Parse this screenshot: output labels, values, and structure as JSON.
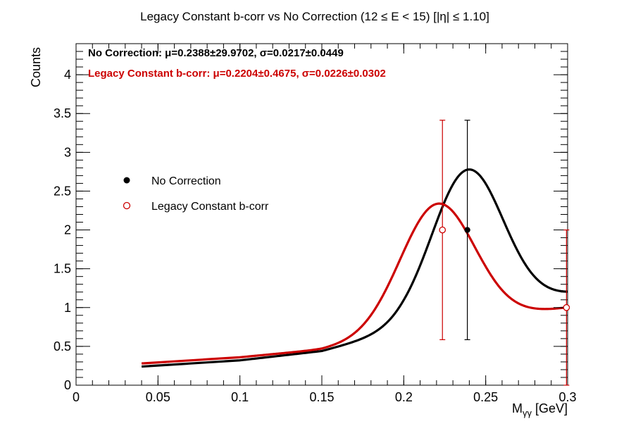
{
  "chart_data": {
    "type": "scatter",
    "title": "Legacy Constant b-corr vs No Correction   (12     ≤ E < 15)   [|η| ≤ 1.10]",
    "xlabel_main": "M",
    "xlabel_sub": "γγ",
    "xlabel_unit": " [GeV]",
    "ylabel": "Counts",
    "xlim": [
      0,
      0.3
    ],
    "ylim": [
      0,
      4.4
    ],
    "x_ticks": [
      0,
      0.05,
      0.1,
      0.15,
      0.2,
      0.25,
      0.3
    ],
    "x_tick_labels": [
      "0",
      "0.05",
      "0.1",
      "0.15",
      "0.2",
      "0.25",
      "0.3"
    ],
    "y_ticks": [
      0,
      0.5,
      1,
      1.5,
      2,
      2.5,
      3,
      3.5,
      4
    ],
    "y_tick_labels": [
      "0",
      "0.5",
      "1",
      "1.5",
      "2",
      "2.5",
      "3",
      "3.5",
      "4"
    ],
    "grid": false,
    "legend_position": "middle-left",
    "stats": [
      {
        "text": "No Correction: μ=0.2388±29.9702, σ=0.0217±0.0449",
        "color": "#000000"
      },
      {
        "text": "Legacy Constant b-corr: μ=0.2204±0.4675, σ=0.0226±0.0302",
        "color": "#cc0000"
      }
    ],
    "series": [
      {
        "name": "No Correction",
        "color": "#000000",
        "marker": "filled-circle",
        "points": [
          {
            "x": 0.2388,
            "y": 2,
            "yerr": 1.414
          }
        ],
        "fit": {
          "amplitude": 1.87,
          "mean": 0.2388,
          "sigma": 0.0217,
          "bkg": [
            [
              0.04,
              0.24
            ],
            [
              0.1,
              0.32
            ],
            [
              0.15,
              0.44
            ],
            [
              0.2,
              0.72
            ],
            [
              0.25,
              0.96
            ],
            [
              0.3,
              1.17
            ]
          ],
          "x_range": [
            0.04,
            0.3
          ]
        }
      },
      {
        "name": "Legacy Constant b-corr",
        "color": "#cc0000",
        "marker": "open-circle",
        "points": [
          {
            "x": 0.2236,
            "y": 2,
            "yerr": 1.414
          },
          {
            "x": 0.2993,
            "y": 1,
            "yerr": 1.0
          }
        ],
        "fit": {
          "amplitude": 1.6,
          "mean": 0.2204,
          "sigma": 0.0226,
          "bkg": [
            [
              0.04,
              0.28
            ],
            [
              0.1,
              0.36
            ],
            [
              0.15,
              0.46
            ],
            [
              0.2,
              0.66
            ],
            [
              0.25,
              0.85
            ],
            [
              0.3,
              1.0
            ]
          ],
          "x_range": [
            0.04,
            0.3
          ]
        }
      }
    ]
  }
}
